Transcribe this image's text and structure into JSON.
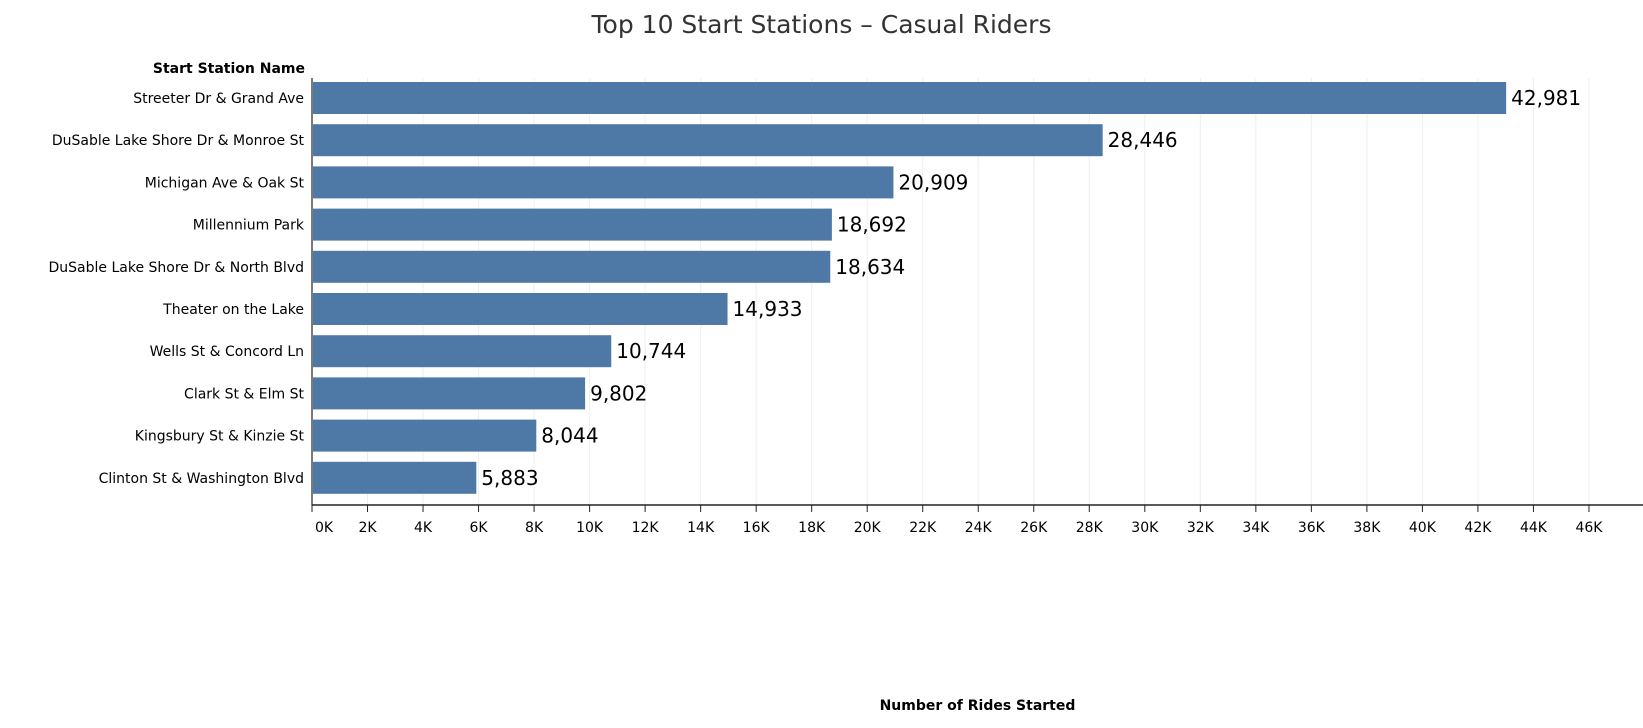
{
  "chart_data": {
    "type": "bar",
    "orientation": "horizontal",
    "title": "Top 10 Start Stations – Casual Riders",
    "ylabel": "Start Station Name",
    "xlabel": "Number of Rides Started",
    "categories": [
      "Streeter Dr & Grand Ave",
      "DuSable Lake Shore Dr & Monroe St",
      "Michigan Ave & Oak St",
      "Millennium Park",
      "DuSable Lake Shore Dr & North Blvd",
      "Theater on the Lake",
      "Wells St & Concord Ln",
      "Clark St & Elm St",
      "Kingsbury St & Kinzie St",
      "Clinton St & Washington Blvd"
    ],
    "values": [
      42981,
      28446,
      20909,
      18692,
      18634,
      14933,
      10744,
      9802,
      8044,
      5883
    ],
    "data_labels": [
      "42,981",
      "28,446",
      "20,909",
      "18,692",
      "18,634",
      "14,933",
      "10,744",
      "9,802",
      "8,044",
      "5,883"
    ],
    "xlim": [
      0,
      47000
    ],
    "xticks": [
      0,
      2000,
      4000,
      6000,
      8000,
      10000,
      12000,
      14000,
      16000,
      18000,
      20000,
      22000,
      24000,
      26000,
      28000,
      30000,
      32000,
      34000,
      36000,
      38000,
      40000,
      42000,
      44000,
      46000
    ],
    "xtick_labels": [
      "0K",
      "2K",
      "4K",
      "6K",
      "8K",
      "10K",
      "12K",
      "14K",
      "16K",
      "18K",
      "20K",
      "22K",
      "24K",
      "26K",
      "28K",
      "30K",
      "32K",
      "34K",
      "36K",
      "38K",
      "40K",
      "42K",
      "44K",
      "46K"
    ],
    "grid": true,
    "bar_color": "#4e79a7"
  }
}
